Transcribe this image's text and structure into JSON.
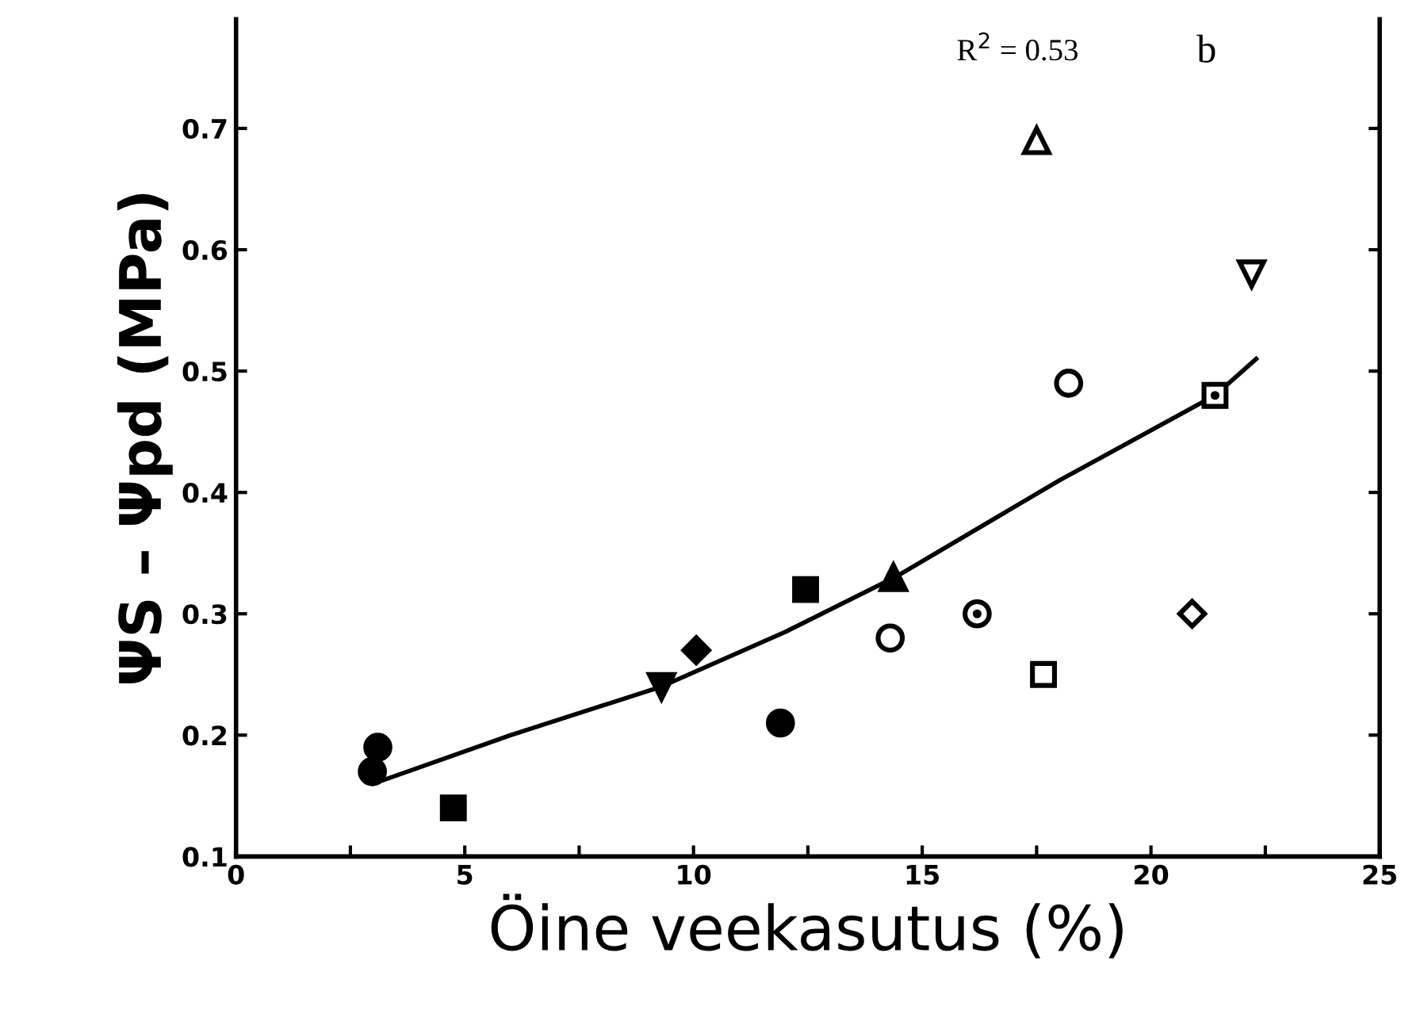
{
  "chart_data": {
    "type": "scatter",
    "xlabel": "Öine veekasutus (%)",
    "ylabel": "ΨS – Ψpd (MPa)",
    "xlim": [
      0,
      25
    ],
    "xticks": [
      0,
      {
        "value": 2.5,
        "label": null
      },
      5,
      {
        "value": 7.5,
        "label": null
      },
      10,
      {
        "value": 12.5,
        "label": null
      },
      15,
      {
        "value": 17.5,
        "label": null
      },
      20,
      {
        "value": 22.5,
        "label": null
      },
      25
    ],
    "ylim": [
      0.1,
      0.79
    ],
    "yticks": [
      0.1,
      0.2,
      0.3,
      0.4,
      0.5,
      0.6,
      0.7
    ],
    "grid": false,
    "annotations": [
      "R$^{2}$ = 0.53",
      "b"
    ],
    "series": [
      {
        "marker": "circle",
        "color": "#000000",
        "x": [
          2.98,
          3.1,
          11.9
        ],
        "values": [
          0.17,
          0.19,
          0.21
        ]
      },
      {
        "marker": "square",
        "color": "#000000",
        "x": [
          4.75,
          12.45
        ],
        "values": [
          0.14,
          0.32
        ]
      },
      {
        "marker": "triangle_down",
        "color": "#000000",
        "x": [
          9.3
        ],
        "values": [
          0.24
        ]
      },
      {
        "marker": "diamond",
        "color": "#000000",
        "x": [
          10.06
        ],
        "values": [
          0.27
        ]
      },
      {
        "marker": "triangle",
        "color": "#000000",
        "x": [
          14.37
        ],
        "values": [
          0.33
        ]
      },
      {
        "marker": "circle",
        "color": "#ffffff",
        "x": [
          14.3,
          18.2
        ],
        "values": [
          0.28,
          0.49
        ]
      },
      {
        "marker": "circle_dot",
        "color": "#ffffff",
        "x": [
          16.2
        ],
        "values": [
          0.3
        ]
      },
      {
        "marker": "square",
        "color": "#ffffff",
        "x": [
          17.65
        ],
        "values": [
          0.25
        ]
      },
      {
        "marker": "square_dot",
        "color": "#ffffff",
        "x": [
          21.4
        ],
        "values": [
          0.48
        ]
      },
      {
        "marker": "diamond",
        "color": "#ffffff",
        "x": [
          20.9
        ],
        "values": [
          0.3
        ]
      },
      {
        "marker": "triangle",
        "color": "#ffffff",
        "x": [
          17.5
        ],
        "values": [
          0.69
        ]
      },
      {
        "marker": "triangle_down",
        "color": "#ffffff",
        "x": [
          22.2
        ],
        "values": [
          0.58
        ]
      },
      {
        "type": "line",
        "marker": "none",
        "color": "#000000",
        "x": [
          3,
          6,
          9.3,
          12,
          14.4,
          18,
          21.4,
          22.3
        ],
        "values": [
          0.16,
          0.2,
          0.24,
          0.285,
          0.33,
          0.41,
          0.48,
          0.51
        ]
      }
    ]
  }
}
